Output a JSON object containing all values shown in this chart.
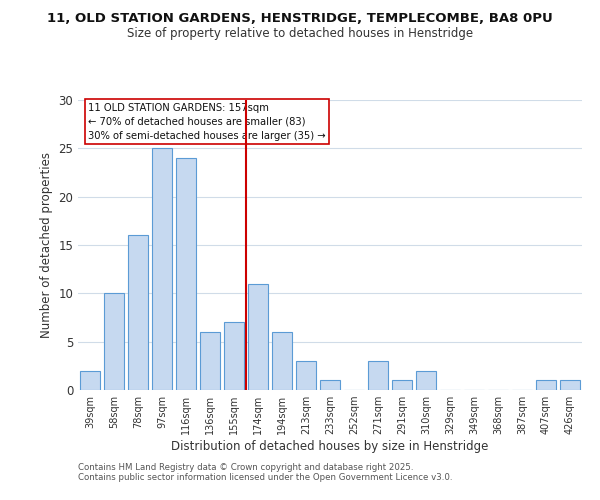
{
  "title_line1": "11, OLD STATION GARDENS, HENSTRIDGE, TEMPLECOMBE, BA8 0PU",
  "title_line2": "Size of property relative to detached houses in Henstridge",
  "xlabel": "Distribution of detached houses by size in Henstridge",
  "ylabel": "Number of detached properties",
  "bar_labels": [
    "39sqm",
    "58sqm",
    "78sqm",
    "97sqm",
    "116sqm",
    "136sqm",
    "155sqm",
    "174sqm",
    "194sqm",
    "213sqm",
    "233sqm",
    "252sqm",
    "271sqm",
    "291sqm",
    "310sqm",
    "329sqm",
    "349sqm",
    "368sqm",
    "387sqm",
    "407sqm",
    "426sqm"
  ],
  "bar_values": [
    2,
    10,
    16,
    25,
    24,
    6,
    7,
    11,
    6,
    3,
    1,
    0,
    3,
    1,
    2,
    0,
    0,
    0,
    0,
    1,
    1
  ],
  "bar_color": "#c6d9f0",
  "bar_edge_color": "#5b9bd5",
  "reference_line_x": 6.5,
  "reference_line_color": "#cc0000",
  "ylim": [
    0,
    30
  ],
  "yticks": [
    0,
    5,
    10,
    15,
    20,
    25,
    30
  ],
  "annotation_title": "11 OLD STATION GARDENS: 157sqm",
  "annotation_line1": "← 70% of detached houses are smaller (83)",
  "annotation_line2": "30% of semi-detached houses are larger (35) →",
  "annotation_box_color": "#ffffff",
  "annotation_box_edge": "#cc0000",
  "footer_line1": "Contains HM Land Registry data © Crown copyright and database right 2025.",
  "footer_line2": "Contains public sector information licensed under the Open Government Licence v3.0.",
  "background_color": "#ffffff",
  "grid_color": "#d0dce8"
}
